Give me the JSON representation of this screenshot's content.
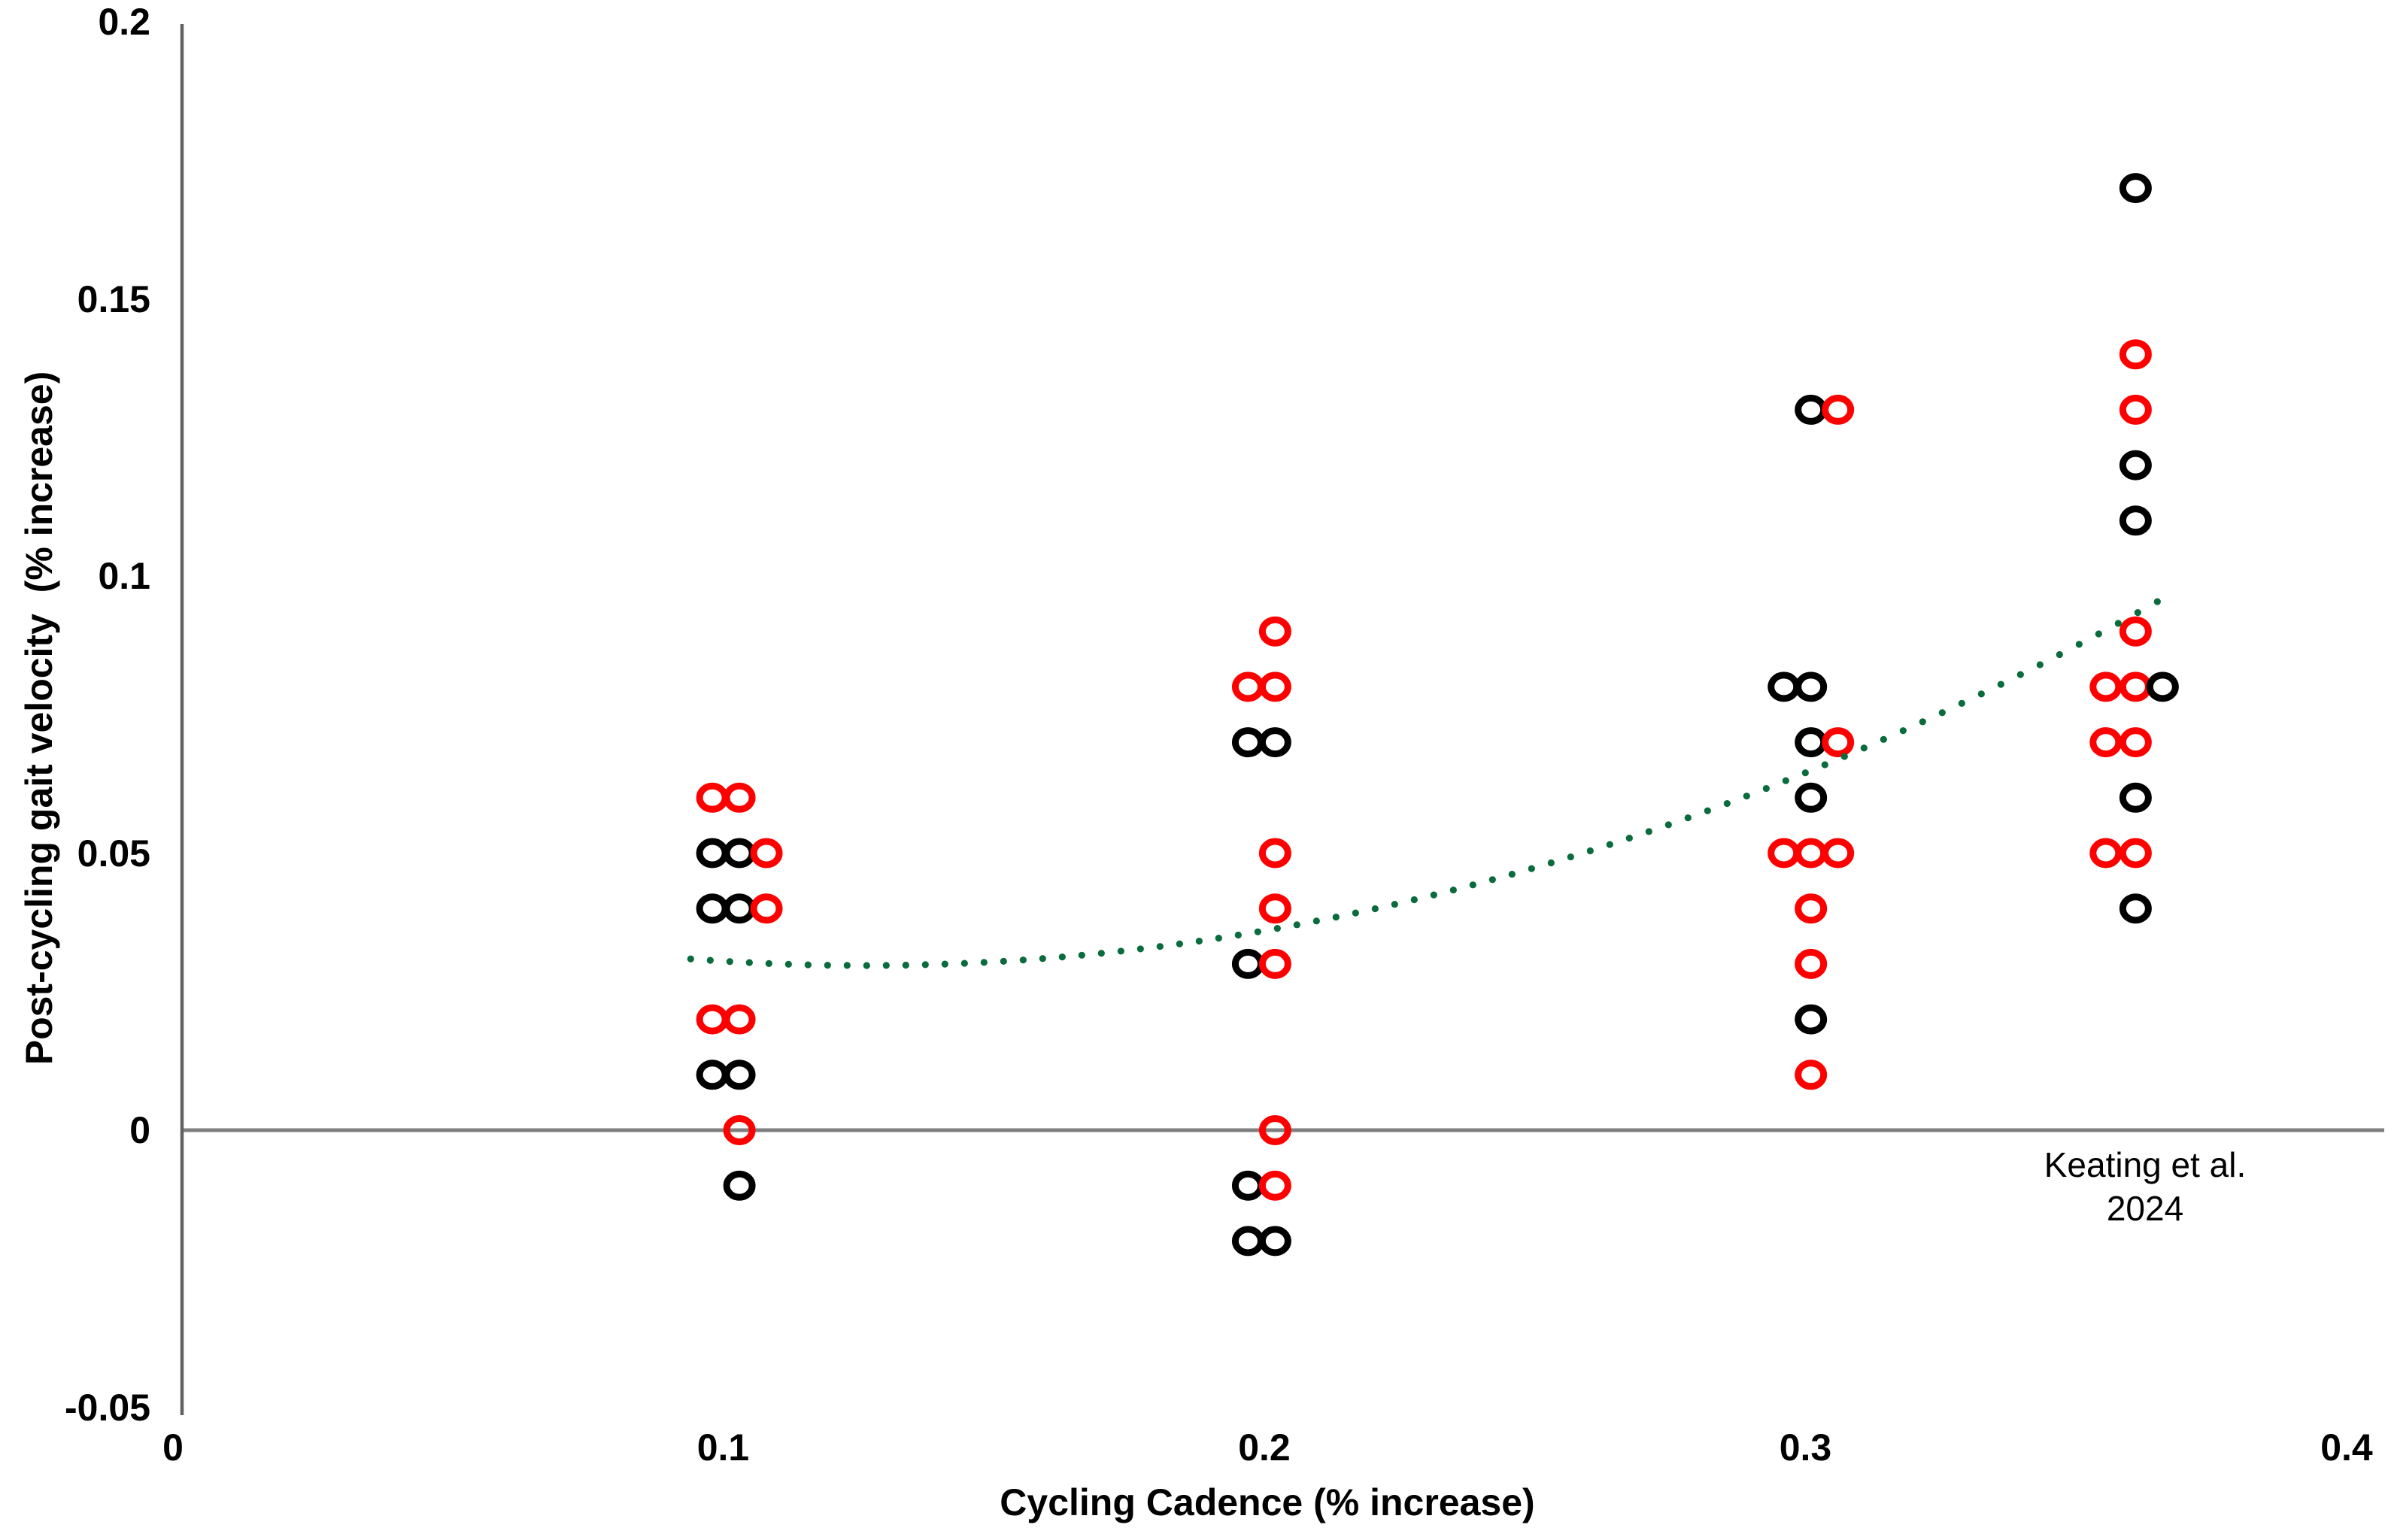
{
  "chart_data": {
    "type": "scatter",
    "title": "",
    "xlabel": "Cycling Cadence (% increase)",
    "ylabel": "Post-cycling gait velocity  (% increase)",
    "annotation": {
      "line1": "Keating et al.",
      "line2": "2024"
    },
    "x_axis": {
      "range": [
        0,
        0.4
      ],
      "ticks": [
        {
          "label": "0",
          "value": 0.0
        },
        {
          "label": "0.1",
          "value": 0.1
        },
        {
          "label": "0.2",
          "value": 0.2
        },
        {
          "label": "0.3",
          "value": 0.3
        },
        {
          "label": "0.4",
          "value": 0.4
        }
      ]
    },
    "y_axis": {
      "range": [
        -0.05,
        0.2
      ],
      "ticks": [
        {
          "label": "0.2",
          "value": 0.2
        },
        {
          "label": "0.15",
          "value": 0.15
        },
        {
          "label": "0.1",
          "value": 0.1
        },
        {
          "label": "0.05",
          "value": 0.05
        },
        {
          "label": "0",
          "value": 0.0
        },
        {
          "label": "-0.05",
          "value": -0.05
        }
      ]
    },
    "grid": false,
    "legend": false,
    "marker_style": "open-circle",
    "marker_colors": {
      "black": "#000000",
      "red": "#fe0000"
    },
    "axis_color": "#616161",
    "zero_line_color": "#7f7f7f",
    "cadence_groups": [
      0.1,
      0.2,
      0.3,
      0.36
    ],
    "points": [
      {
        "x": 0.098,
        "y": 0.06,
        "color": "red"
      },
      {
        "x": 0.103,
        "y": 0.06,
        "color": "red"
      },
      {
        "x": 0.098,
        "y": 0.05,
        "color": "black"
      },
      {
        "x": 0.103,
        "y": 0.05,
        "color": "black"
      },
      {
        "x": 0.108,
        "y": 0.05,
        "color": "red"
      },
      {
        "x": 0.098,
        "y": 0.04,
        "color": "black"
      },
      {
        "x": 0.103,
        "y": 0.04,
        "color": "black"
      },
      {
        "x": 0.108,
        "y": 0.04,
        "color": "red"
      },
      {
        "x": 0.098,
        "y": 0.02,
        "color": "red"
      },
      {
        "x": 0.103,
        "y": 0.02,
        "color": "red"
      },
      {
        "x": 0.098,
        "y": 0.01,
        "color": "black"
      },
      {
        "x": 0.103,
        "y": 0.01,
        "color": "black"
      },
      {
        "x": 0.103,
        "y": 0.0,
        "color": "red"
      },
      {
        "x": 0.103,
        "y": -0.01,
        "color": "black"
      },
      {
        "x": 0.202,
        "y": 0.09,
        "color": "red"
      },
      {
        "x": 0.197,
        "y": 0.08,
        "color": "red"
      },
      {
        "x": 0.202,
        "y": 0.08,
        "color": "red"
      },
      {
        "x": 0.197,
        "y": 0.07,
        "color": "black"
      },
      {
        "x": 0.202,
        "y": 0.07,
        "color": "black"
      },
      {
        "x": 0.202,
        "y": 0.05,
        "color": "red"
      },
      {
        "x": 0.202,
        "y": 0.04,
        "color": "red"
      },
      {
        "x": 0.197,
        "y": 0.03,
        "color": "black"
      },
      {
        "x": 0.202,
        "y": 0.03,
        "color": "red"
      },
      {
        "x": 0.202,
        "y": 0.0,
        "color": "red"
      },
      {
        "x": 0.197,
        "y": -0.01,
        "color": "black"
      },
      {
        "x": 0.202,
        "y": -0.01,
        "color": "red"
      },
      {
        "x": 0.197,
        "y": -0.02,
        "color": "black"
      },
      {
        "x": 0.202,
        "y": -0.02,
        "color": "black"
      },
      {
        "x": 0.301,
        "y": 0.13,
        "color": "black"
      },
      {
        "x": 0.306,
        "y": 0.13,
        "color": "red"
      },
      {
        "x": 0.296,
        "y": 0.08,
        "color": "black"
      },
      {
        "x": 0.301,
        "y": 0.08,
        "color": "black"
      },
      {
        "x": 0.301,
        "y": 0.07,
        "color": "black"
      },
      {
        "x": 0.306,
        "y": 0.07,
        "color": "red"
      },
      {
        "x": 0.301,
        "y": 0.06,
        "color": "black"
      },
      {
        "x": 0.296,
        "y": 0.05,
        "color": "red"
      },
      {
        "x": 0.301,
        "y": 0.05,
        "color": "red"
      },
      {
        "x": 0.306,
        "y": 0.05,
        "color": "red"
      },
      {
        "x": 0.301,
        "y": 0.04,
        "color": "red"
      },
      {
        "x": 0.301,
        "y": 0.03,
        "color": "red"
      },
      {
        "x": 0.301,
        "y": 0.02,
        "color": "black"
      },
      {
        "x": 0.301,
        "y": 0.01,
        "color": "red"
      },
      {
        "x": 0.361,
        "y": 0.17,
        "color": "black"
      },
      {
        "x": 0.361,
        "y": 0.14,
        "color": "red"
      },
      {
        "x": 0.361,
        "y": 0.13,
        "color": "red"
      },
      {
        "x": 0.361,
        "y": 0.12,
        "color": "black"
      },
      {
        "x": 0.361,
        "y": 0.11,
        "color": "black"
      },
      {
        "x": 0.361,
        "y": 0.09,
        "color": "red"
      },
      {
        "x": 0.3555,
        "y": 0.08,
        "color": "red"
      },
      {
        "x": 0.361,
        "y": 0.08,
        "color": "red"
      },
      {
        "x": 0.366,
        "y": 0.08,
        "color": "black"
      },
      {
        "x": 0.3555,
        "y": 0.07,
        "color": "red"
      },
      {
        "x": 0.361,
        "y": 0.07,
        "color": "red"
      },
      {
        "x": 0.361,
        "y": 0.06,
        "color": "black"
      },
      {
        "x": 0.3555,
        "y": 0.05,
        "color": "red"
      },
      {
        "x": 0.361,
        "y": 0.05,
        "color": "red"
      },
      {
        "x": 0.361,
        "y": 0.04,
        "color": "black"
      }
    ],
    "trend": {
      "style": "dotted",
      "color": "#0a6b3c",
      "shape": "quadratic",
      "quadratic": {
        "a": 1.15,
        "b": -0.29,
        "c": 0.048
      },
      "x_start": 0.094,
      "x_end": 0.3665
    }
  }
}
